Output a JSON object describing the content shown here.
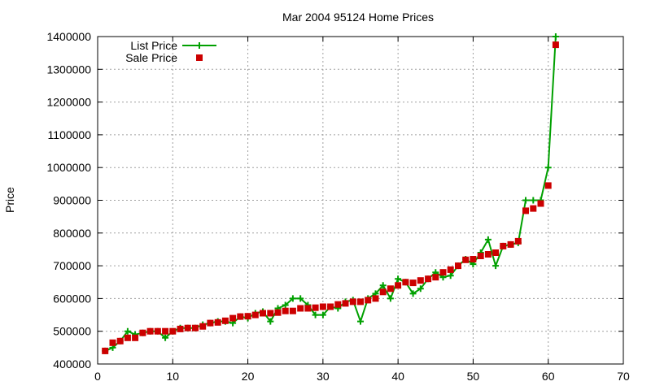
{
  "chart_data": {
    "type": "line",
    "title": "Mar 2004 95124 Home Prices",
    "xlabel": "",
    "ylabel": "Price",
    "xlim": [
      0,
      70
    ],
    "ylim": [
      400000,
      1400000
    ],
    "xticks": [
      0,
      10,
      20,
      30,
      40,
      50,
      60,
      70
    ],
    "yticks": [
      400000,
      500000,
      600000,
      700000,
      800000,
      900000,
      1000000,
      1100000,
      1200000,
      1300000,
      1400000
    ],
    "grid": true,
    "legend_position": "top-left",
    "series": [
      {
        "name": "List Price",
        "style": "line-with-plus-markers",
        "color": "#00a000",
        "x": [
          1,
          2,
          3,
          4,
          5,
          6,
          7,
          8,
          9,
          10,
          11,
          12,
          13,
          14,
          15,
          16,
          17,
          18,
          19,
          20,
          21,
          22,
          23,
          24,
          25,
          26,
          27,
          28,
          29,
          30,
          31,
          32,
          33,
          34,
          35,
          36,
          37,
          38,
          39,
          40,
          41,
          42,
          43,
          44,
          45,
          46,
          47,
          48,
          49,
          50,
          51,
          52,
          53,
          54,
          55,
          56,
          57,
          58,
          59,
          60,
          61
        ],
        "y": [
          440000,
          450000,
          470000,
          500000,
          490000,
          495000,
          500000,
          500000,
          480000,
          500000,
          510000,
          510000,
          510000,
          520000,
          525000,
          530000,
          530000,
          525000,
          545000,
          540000,
          555000,
          560000,
          530000,
          570000,
          580000,
          600000,
          600000,
          580000,
          550000,
          550000,
          575000,
          570000,
          590000,
          595000,
          530000,
          600000,
          615000,
          640000,
          600000,
          660000,
          650000,
          615000,
          630000,
          660000,
          680000,
          665000,
          670000,
          700000,
          720000,
          705000,
          740000,
          780000,
          700000,
          760000,
          765000,
          770000,
          900000,
          900000,
          900000,
          1000000,
          1400000
        ]
      },
      {
        "name": "Sale Price",
        "style": "square-markers",
        "color": "#cc0000",
        "x": [
          1,
          2,
          3,
          4,
          5,
          6,
          7,
          8,
          9,
          10,
          11,
          12,
          13,
          14,
          15,
          16,
          17,
          18,
          19,
          20,
          21,
          22,
          23,
          24,
          25,
          26,
          27,
          28,
          29,
          30,
          31,
          32,
          33,
          34,
          35,
          36,
          37,
          38,
          39,
          40,
          41,
          42,
          43,
          44,
          45,
          46,
          47,
          48,
          49,
          50,
          51,
          52,
          53,
          54,
          55,
          56,
          57,
          58,
          59,
          60,
          61
        ],
        "y": [
          440000,
          465000,
          470000,
          480000,
          480000,
          495000,
          500000,
          500000,
          500000,
          500000,
          507000,
          510000,
          510000,
          515000,
          525000,
          527000,
          532000,
          540000,
          545000,
          546000,
          550000,
          555000,
          555000,
          557000,
          562000,
          562000,
          570000,
          570000,
          572000,
          575000,
          575000,
          582000,
          585000,
          590000,
          590000,
          595000,
          600000,
          620000,
          630000,
          640000,
          650000,
          648000,
          655000,
          660000,
          665000,
          680000,
          688000,
          700000,
          718000,
          720000,
          730000,
          735000,
          740000,
          760000,
          765000,
          775000,
          868000,
          875000,
          890000,
          945000,
          1375000
        ]
      }
    ]
  }
}
